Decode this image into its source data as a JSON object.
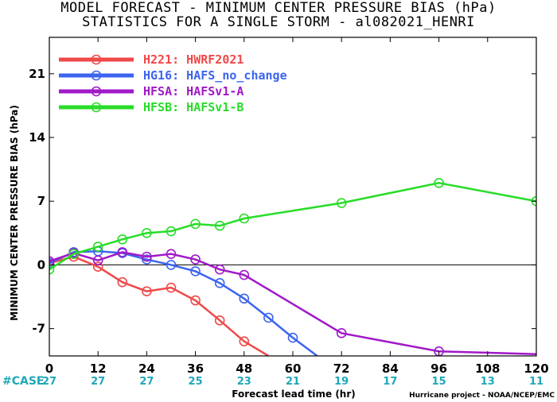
{
  "title_line1": "MODEL FORECAST - MINIMUM CENTER PRESSURE BIAS (hPa)",
  "title_line2": "STATISTICS FOR A SINGLE STORM - al082021_HENRI",
  "case_label": "#CASE",
  "credit": "Hurricane project - NOAA/NCEP/EMC",
  "chart_data": {
    "type": "line",
    "xlabel": "Forecast lead time (hr)",
    "ylabel": "MINIMUM CENTER PRESSURE BIAS (hPa)",
    "xlim": [
      0,
      120
    ],
    "ylim": [
      -10,
      25
    ],
    "x_ticks": [
      0,
      12,
      24,
      36,
      48,
      60,
      72,
      84,
      96,
      108,
      120
    ],
    "y_ticks": [
      -7,
      0,
      7,
      14,
      21
    ],
    "zero_line": true,
    "legend_position": "top-left",
    "case_counts": [
      27,
      27,
      27,
      25,
      23,
      21,
      19,
      17,
      15,
      13,
      11
    ],
    "series": [
      {
        "name": "H221: HWRF2021",
        "color": "#f04848",
        "x": [
          0,
          6,
          12,
          18,
          24,
          30,
          36,
          42,
          48,
          54
        ],
        "y": [
          0.2,
          0.9,
          -0.2,
          -1.9,
          -2.9,
          -2.5,
          -3.9,
          -6.1,
          -8.4,
          -10.0
        ]
      },
      {
        "name": "HG16: HAFS_no_change",
        "color": "#3c64f0",
        "x": [
          0,
          6,
          12,
          18,
          24,
          30,
          36,
          42,
          48,
          54,
          60,
          66
        ],
        "y": [
          0.2,
          1.4,
          1.5,
          1.3,
          0.6,
          0.0,
          -0.7,
          -2.0,
          -3.7,
          -5.8,
          -8.0,
          -10.0
        ]
      },
      {
        "name": "HFSA: HAFSv1-A",
        "color": "#a019c8",
        "x": [
          0,
          6,
          12,
          18,
          24,
          30,
          36,
          42,
          48,
          72,
          96,
          120
        ],
        "y": [
          0.4,
          1.3,
          0.5,
          1.4,
          0.9,
          1.2,
          0.6,
          -0.5,
          -1.1,
          -7.5,
          -9.5,
          -9.8
        ]
      },
      {
        "name": "HFSB: HAFSv1-B",
        "color": "#28dc28",
        "x": [
          0,
          6,
          12,
          18,
          24,
          30,
          36,
          42,
          48,
          72,
          96,
          120
        ],
        "y": [
          -0.5,
          1.2,
          2.0,
          2.8,
          3.5,
          3.7,
          4.5,
          4.3,
          5.1,
          6.8,
          9.0,
          7.0
        ]
      }
    ]
  }
}
